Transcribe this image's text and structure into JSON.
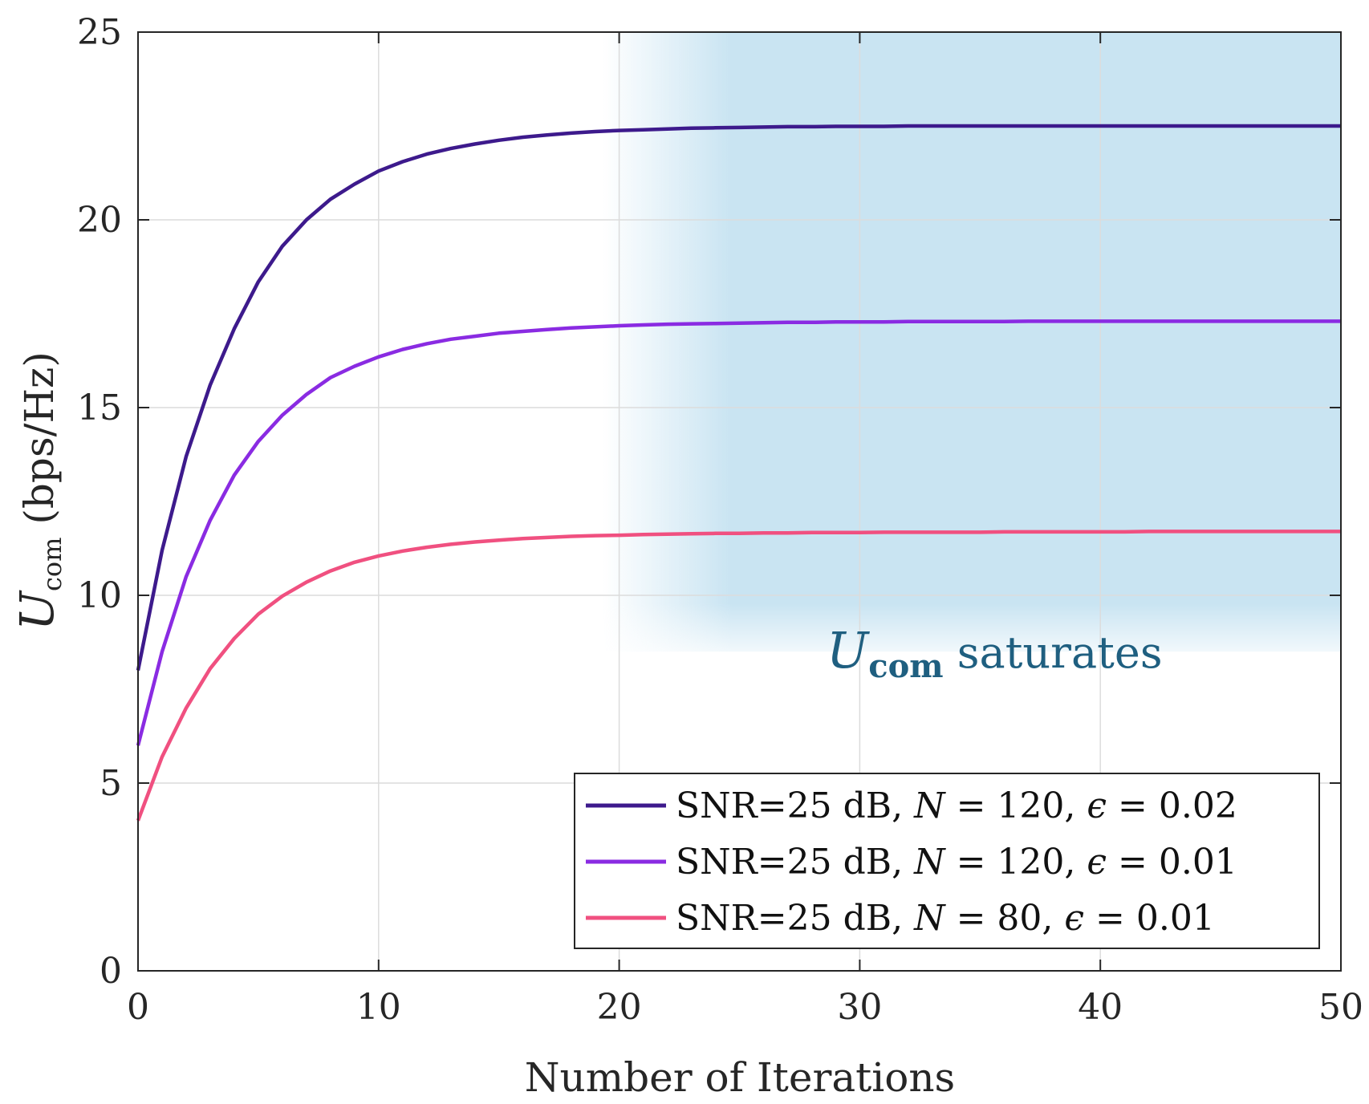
{
  "chart_data": {
    "type": "line",
    "title": "",
    "xlabel": "Number of Iterations",
    "ylabel": {
      "symbol": "U",
      "subscript": "com",
      "units": "(bps/Hz)"
    },
    "xlim": [
      0,
      50
    ],
    "ylim": [
      0,
      25
    ],
    "xticks": [
      0,
      10,
      20,
      30,
      40,
      50
    ],
    "yticks": [
      0,
      5,
      10,
      15,
      20,
      25
    ],
    "grid": true,
    "legend_position": "bottom-right",
    "x": [
      0,
      1,
      2,
      3,
      4,
      5,
      6,
      7,
      8,
      9,
      10,
      11,
      12,
      13,
      14,
      15,
      16,
      17,
      18,
      19,
      20,
      21,
      22,
      23,
      24,
      25,
      26,
      27,
      28,
      29,
      30,
      31,
      32,
      33,
      34,
      35,
      36,
      37,
      38,
      39,
      40,
      41,
      42,
      43,
      44,
      45,
      46,
      47,
      48,
      49,
      50
    ],
    "series": [
      {
        "name": "SNR=25 dB, N = 120, ε = 0.02",
        "legend": {
          "prefix": "SNR=25 dB, ",
          "var1": "N",
          "val1": " = 120, ",
          "var2": "ϵ",
          "val2": " = 0.02"
        },
        "color": "#3d1a8c",
        "values": [
          8.0,
          11.2,
          13.7,
          15.6,
          17.1,
          18.35,
          19.3,
          20.0,
          20.55,
          20.95,
          21.3,
          21.55,
          21.75,
          21.9,
          22.02,
          22.12,
          22.2,
          22.26,
          22.31,
          22.35,
          22.38,
          22.4,
          22.42,
          22.44,
          22.45,
          22.46,
          22.47,
          22.48,
          22.48,
          22.49,
          22.49,
          22.49,
          22.5,
          22.5,
          22.5,
          22.5,
          22.5,
          22.5,
          22.5,
          22.5,
          22.5,
          22.5,
          22.5,
          22.5,
          22.5,
          22.5,
          22.5,
          22.5,
          22.5,
          22.5,
          22.5
        ]
      },
      {
        "name": "SNR=25 dB, N = 120, ε = 0.01",
        "legend": {
          "prefix": "SNR=25 dB, ",
          "var1": "N",
          "val1": " = 120, ",
          "var2": "ϵ",
          "val2": " = 0.01"
        },
        "color": "#8a2be2",
        "values": [
          6.0,
          8.5,
          10.5,
          12.0,
          13.2,
          14.1,
          14.8,
          15.35,
          15.8,
          16.1,
          16.35,
          16.55,
          16.7,
          16.82,
          16.9,
          16.98,
          17.03,
          17.08,
          17.12,
          17.15,
          17.18,
          17.2,
          17.22,
          17.23,
          17.24,
          17.25,
          17.26,
          17.27,
          17.27,
          17.28,
          17.28,
          17.28,
          17.29,
          17.29,
          17.29,
          17.29,
          17.29,
          17.3,
          17.3,
          17.3,
          17.3,
          17.3,
          17.3,
          17.3,
          17.3,
          17.3,
          17.3,
          17.3,
          17.3,
          17.3,
          17.3
        ]
      },
      {
        "name": "SNR=25 dB, N = 80, ε = 0.01",
        "legend": {
          "prefix": "SNR=25 dB, ",
          "var1": "N",
          "val1": " = 80, ",
          "var2": "ϵ",
          "val2": " = 0.01"
        },
        "color": "#f05080",
        "values": [
          4.0,
          5.7,
          7.0,
          8.05,
          8.85,
          9.5,
          9.98,
          10.35,
          10.65,
          10.88,
          11.05,
          11.18,
          11.28,
          11.36,
          11.42,
          11.47,
          11.51,
          11.54,
          11.57,
          11.59,
          11.6,
          11.62,
          11.63,
          11.64,
          11.65,
          11.65,
          11.66,
          11.66,
          11.67,
          11.67,
          11.67,
          11.68,
          11.68,
          11.68,
          11.68,
          11.68,
          11.69,
          11.69,
          11.69,
          11.69,
          11.69,
          11.69,
          11.7,
          11.7,
          11.7,
          11.7,
          11.7,
          11.7,
          11.7,
          11.7,
          11.7
        ]
      }
    ],
    "annotations": [
      {
        "symbol": "U",
        "subscript": "com",
        "text": " saturates",
        "color": "#1f5f80",
        "region_x": [
          20,
          50
        ],
        "region_y": [
          8.5,
          25
        ],
        "region_color": "#c9e4f2"
      }
    ]
  }
}
